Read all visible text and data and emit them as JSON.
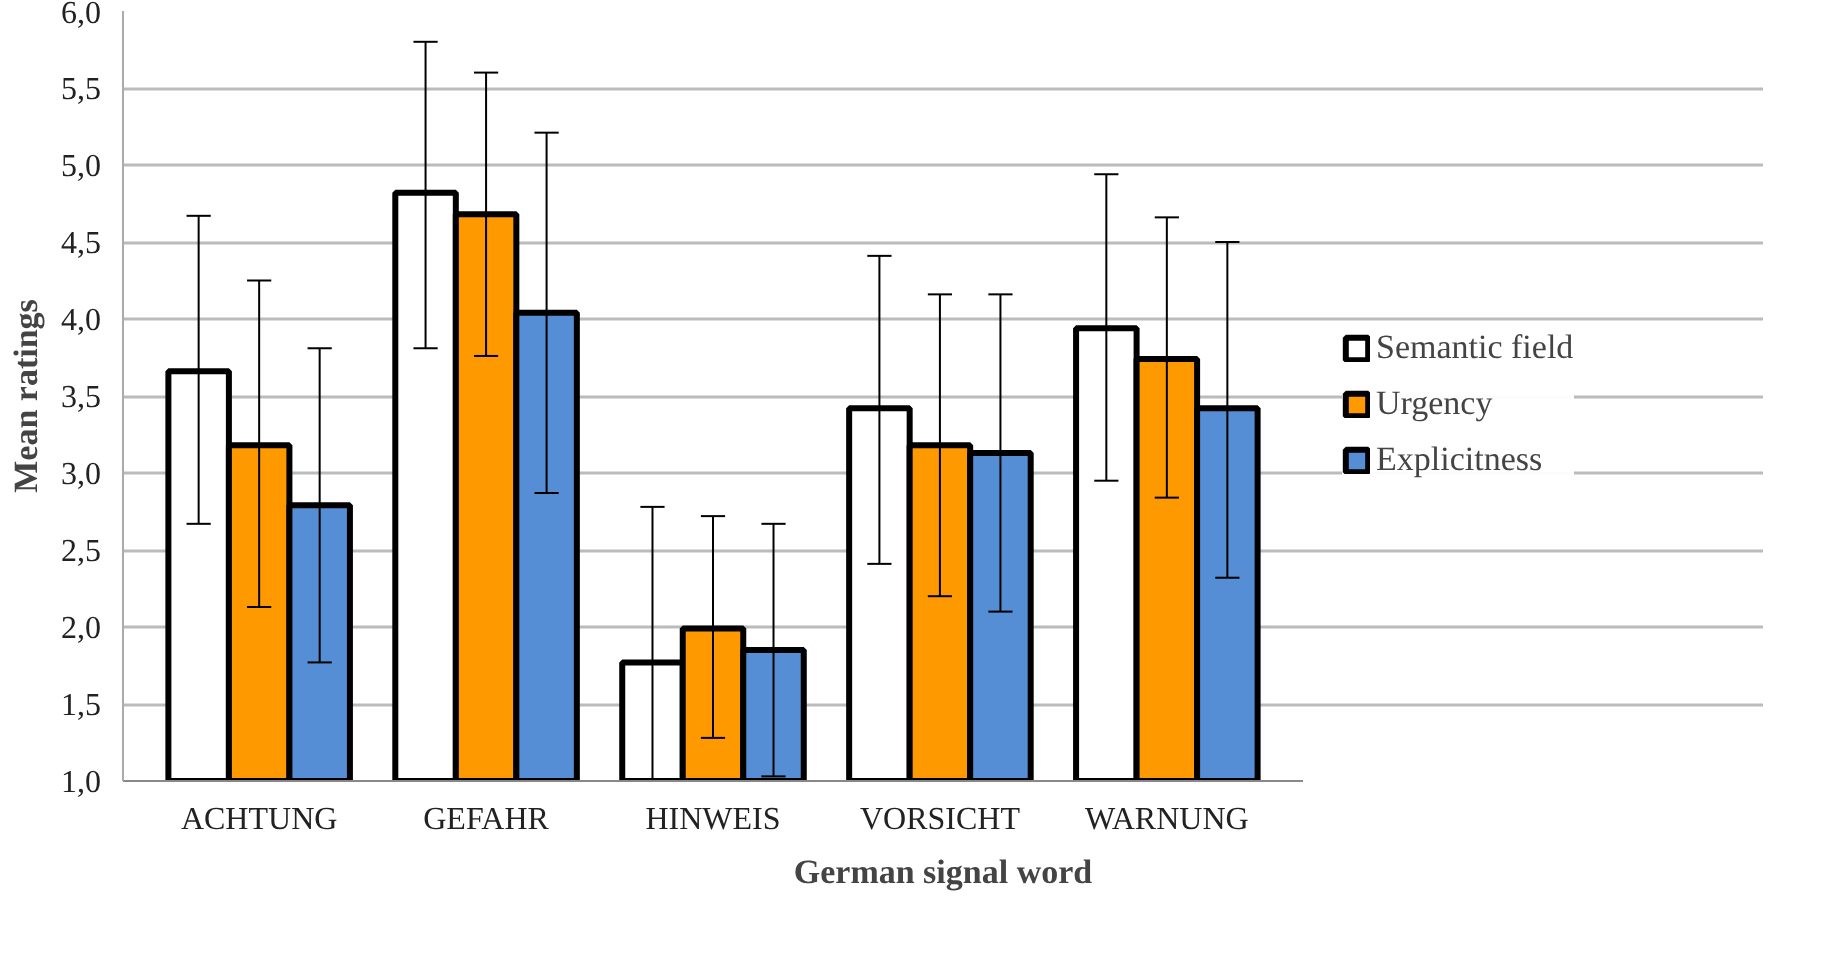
{
  "chart_data": {
    "type": "bar",
    "xlabel": "German signal word",
    "ylabel": "Mean ratings",
    "categories": [
      "ACHTUNG",
      "GEFAHR",
      "HINWEIS",
      "VORSICHT",
      "WARNUNG"
    ],
    "series": [
      {
        "name": "Semantic field",
        "color": "#ffffff",
        "values": [
          3.66,
          4.82,
          1.77,
          3.42,
          3.94
        ],
        "errors": [
          [
            2.67,
            4.67
          ],
          [
            3.81,
            5.8
          ],
          [
            1.0,
            2.78
          ],
          [
            2.41,
            4.41
          ],
          [
            2.95,
            4.94
          ]
        ]
      },
      {
        "name": "Urgency",
        "color": "#ff9900",
        "values": [
          3.18,
          4.68,
          1.99,
          3.18,
          3.74
        ],
        "errors": [
          [
            2.13,
            4.25
          ],
          [
            3.76,
            5.6
          ],
          [
            1.28,
            2.72
          ],
          [
            2.2,
            4.16
          ],
          [
            2.84,
            4.66
          ]
        ]
      },
      {
        "name": "Explicitness",
        "color": "#558ed5",
        "values": [
          2.79,
          4.04,
          1.85,
          3.13,
          3.42
        ],
        "errors": [
          [
            1.77,
            3.81
          ],
          [
            2.87,
            5.21
          ],
          [
            1.03,
            2.67
          ],
          [
            2.1,
            4.16
          ],
          [
            2.32,
            4.5
          ]
        ]
      }
    ],
    "ylim": [
      1,
      6
    ],
    "yticks": [
      {
        "value": 1,
        "label": "1,0"
      },
      {
        "value": 1.5,
        "label": "1,5"
      },
      {
        "value": 2,
        "label": "2,0"
      },
      {
        "value": 2.5,
        "label": "2,5"
      },
      {
        "value": 3,
        "label": "3,0"
      },
      {
        "value": 3.5,
        "label": "3,5"
      },
      {
        "value": 4,
        "label": "4,0"
      },
      {
        "value": 4.5,
        "label": "4,5"
      },
      {
        "value": 5,
        "label": "5,0"
      },
      {
        "value": 5.5,
        "label": "5,5"
      },
      {
        "value": 6,
        "label": "6,0"
      }
    ],
    "grid": "y",
    "legend": "right"
  }
}
